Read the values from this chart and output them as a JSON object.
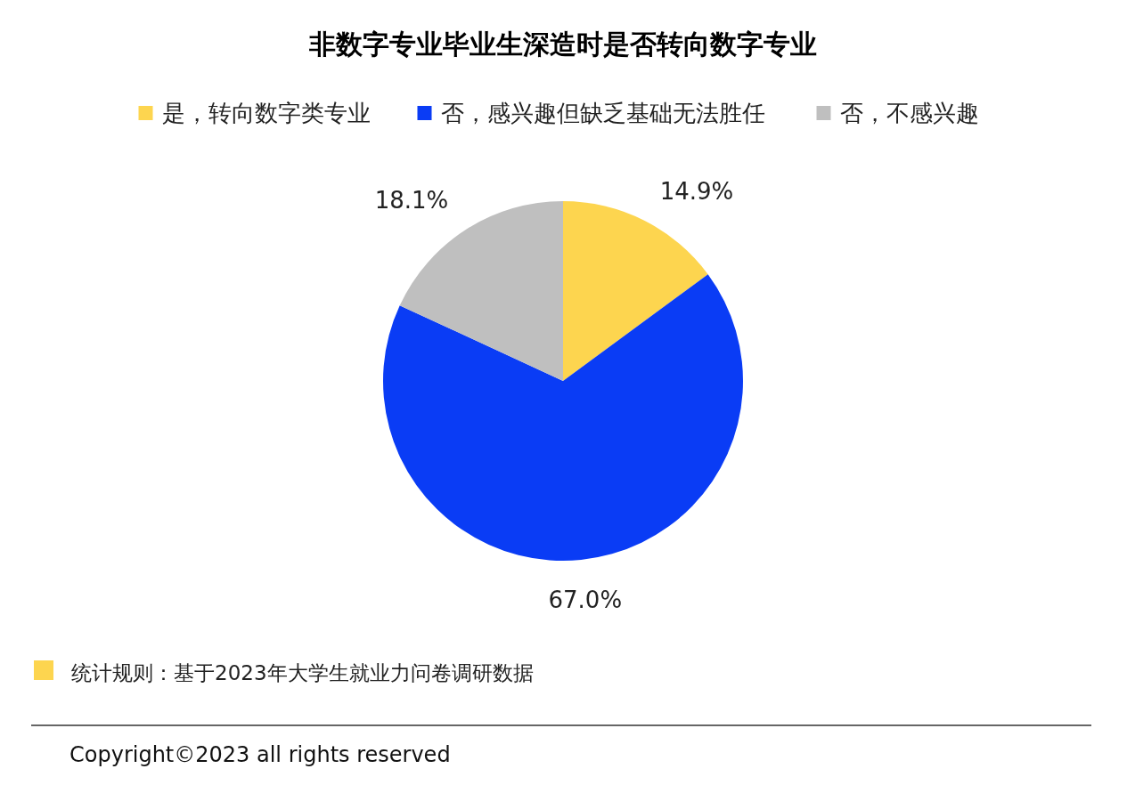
{
  "chart_data": {
    "type": "pie",
    "title": "非数字专业毕业生深造时是否转向数字专业",
    "categories": [
      "是，转向数字类专业",
      "否，感兴趣但缺乏基础无法胜任",
      "否，不感兴趣"
    ],
    "values": [
      14.9,
      67.0,
      18.1
    ],
    "colors": [
      "#fdd54f",
      "#0a3cf5",
      "#bfbfbf"
    ],
    "value_labels": [
      "14.9%",
      "67.0%",
      "18.1%"
    ],
    "legend": "top",
    "annotations": [
      "统计规则：基于2023年大学生就业力问卷调研数据",
      "Copyright©2023 all rights reserved"
    ]
  }
}
